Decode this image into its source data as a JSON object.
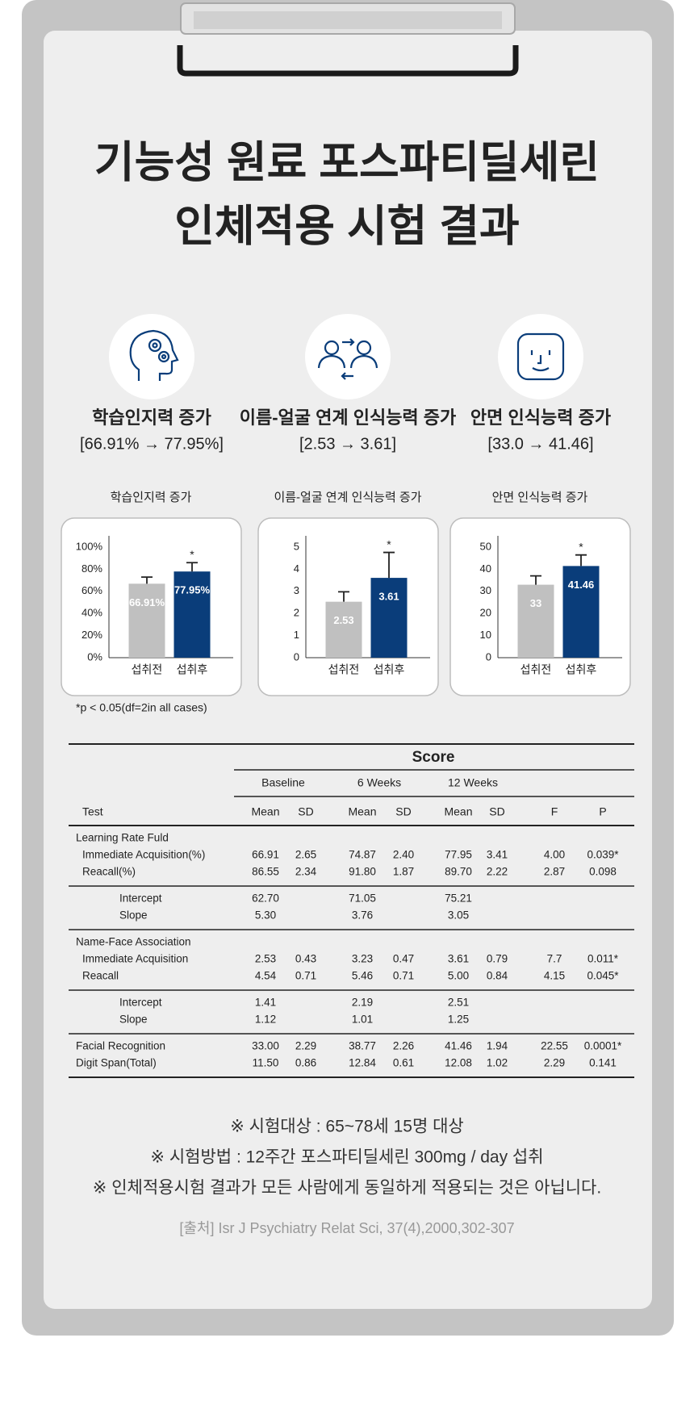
{
  "title": [
    "기능성 원료 포스파티딜세린",
    "인체적용 시험 결과"
  ],
  "highlights": [
    {
      "label": "학습인지력 증가",
      "range": "[66.91% → 77.95%]"
    },
    {
      "label": "이름-얼굴 연계 인식능력 증가",
      "range": "[2.53 → 3.61]"
    },
    {
      "label": "안면 인식능력 증가",
      "range": "[33.0 → 41.46]"
    }
  ],
  "chart_data": [
    {
      "type": "bar",
      "title": "학습인지력 증가",
      "categories": [
        "섭취전",
        "섭취후"
      ],
      "values": [
        66.91,
        77.95
      ],
      "value_labels": [
        "66.91%",
        "77.95%"
      ],
      "errors": [
        6,
        8
      ],
      "marks": [
        null,
        "*"
      ],
      "colors": [
        "#c0c0c0",
        "#0a3d7a"
      ],
      "ylim": [
        0,
        100
      ],
      "yticks": [
        {
          "value": 0,
          "label": "0%"
        },
        {
          "value": 20,
          "label": "20%"
        },
        {
          "value": 40,
          "label": "40%"
        },
        {
          "value": 60,
          "label": "60%"
        },
        {
          "value": 80,
          "label": "80%"
        },
        {
          "value": 100,
          "label": "100%"
        }
      ]
    },
    {
      "type": "bar",
      "title": "이름-얼굴 연계 인식능력 증가",
      "categories": [
        "섭취전",
        "섭취후"
      ],
      "values": [
        2.53,
        3.61
      ],
      "errors": [
        0.45,
        1.15
      ],
      "marks": [
        null,
        "*"
      ],
      "colors": [
        "#c0c0c0",
        "#0a3d7a"
      ],
      "ylim": [
        0,
        5
      ],
      "yticks": [
        0,
        1,
        2,
        3,
        4,
        5
      ]
    },
    {
      "type": "bar",
      "title": "안면 인식능력 증가",
      "categories": [
        "섭취전",
        "섭취후"
      ],
      "values": [
        33,
        41.46
      ],
      "errors": [
        4,
        5
      ],
      "marks": [
        null,
        "*"
      ],
      "colors": [
        "#c0c0c0",
        "#0a3d7a"
      ],
      "ylim": [
        0,
        50
      ],
      "yticks": [
        0,
        10,
        20,
        30,
        40,
        50
      ]
    }
  ],
  "footnote": "*p < 0.05(df=2in all cases)",
  "table": {
    "score": "Score",
    "periods": [
      "Baseline",
      "6 Weeks",
      "12 Weeks"
    ],
    "columns": [
      "Test",
      "Mean",
      "SD",
      "Mean",
      "SD",
      "Mean",
      "SD",
      "F",
      "P"
    ],
    "sections": [
      {
        "heading": "Learning Rate Fuld",
        "rows": [
          [
            "Immediate Acquisition(%)",
            "66.91",
            "2.65",
            "74.87",
            "2.40",
            "77.95",
            "3.41",
            "4.00",
            "0.039*"
          ],
          [
            "Reacall(%)",
            "86.55",
            "2.34",
            "91.80",
            "1.87",
            "89.70",
            "2.22",
            "2.87",
            "0.098"
          ]
        ]
      },
      {
        "rows": [
          [
            "Intercept",
            "62.70",
            null,
            "71.05",
            null,
            "75.21",
            null,
            null,
            null
          ],
          [
            "Slope",
            "5.30",
            null,
            "3.76",
            null,
            "3.05",
            null,
            null,
            null
          ]
        ]
      },
      {
        "heading": "Name-Face Association",
        "rows": [
          [
            "Immediate Acquisition",
            "2.53",
            "0.43",
            "3.23",
            "0.47",
            "3.61",
            "0.79",
            "7.7",
            "0.011*"
          ],
          [
            "Reacall",
            "4.54",
            "0.71",
            "5.46",
            "0.71",
            "5.00",
            "0.84",
            "4.15",
            "0.045*"
          ]
        ]
      },
      {
        "rows": [
          [
            "Intercept",
            "1.41",
            null,
            "2.19",
            null,
            "2.51",
            null,
            null,
            null
          ],
          [
            "Slope",
            "1.12",
            null,
            "1.01",
            null,
            "1.25",
            null,
            null,
            null
          ]
        ]
      },
      {
        "rows": [
          [
            "Facial Recognition",
            "33.00",
            "2.29",
            "38.77",
            "2.26",
            "41.46",
            "1.94",
            "22.55",
            "0.0001*"
          ],
          [
            "Digit Span(Total)",
            "11.50",
            "0.86",
            "12.84",
            "0.61",
            "12.08",
            "1.02",
            "2.29",
            "0.141"
          ]
        ]
      }
    ]
  },
  "notes": [
    "※ 시험대상 : 65~78세 15명 대상",
    "※ 시험방법 : 12주간 포스파티딜세린 300mg / day 섭취",
    "※ 인체적용시험 결과가 모든 사람에게 동일하게 적용되는 것은 아닙니다."
  ],
  "source": "[출처] Isr J Psychiatry Relat Sci, 37(4),2000,302-307"
}
